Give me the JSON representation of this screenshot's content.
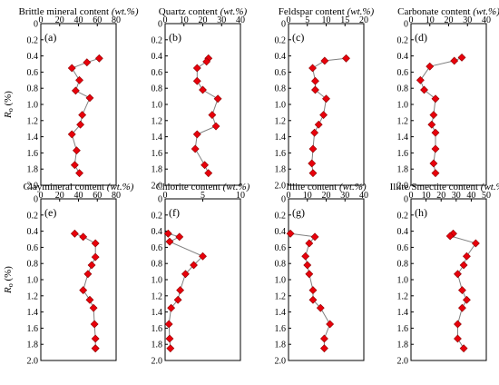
{
  "style": {
    "marker_color": "#e8000b",
    "marker_stroke": "#8b0000",
    "line_color": "#808080"
  },
  "chart_data": [
    {
      "type": "scatter",
      "title": "Brittle mineral content",
      "title_unit": "(wt.%)",
      "label": "(a)",
      "xlim": [
        0,
        80
      ],
      "xticks": [
        "0",
        "20",
        "40",
        "60",
        "80"
      ],
      "ylim": [
        2.0,
        0
      ],
      "yticks": [
        "0",
        "0.2",
        "0.4",
        "0.6",
        "0.8",
        "1.0",
        "1.2",
        "1.4",
        "1.6",
        "1.8",
        "2.0"
      ],
      "ylabel": "Ro (%)",
      "x": [
        62,
        49,
        33,
        41,
        37,
        52,
        44,
        42,
        33,
        38,
        36,
        41
      ],
      "y": [
        0.43,
        0.48,
        0.55,
        0.7,
        0.83,
        0.92,
        1.13,
        1.25,
        1.37,
        1.57,
        1.75,
        1.85
      ]
    },
    {
      "type": "scatter",
      "title": "Quartz content",
      "title_unit": "(wt.%)",
      "label": "(b)",
      "xlim": [
        0,
        40
      ],
      "xticks": [
        "0",
        "10",
        "20",
        "30",
        "40"
      ],
      "ylim": [
        2.0,
        0
      ],
      "yticks": [
        "0",
        "0.2",
        "0.4",
        "0.6",
        "0.8",
        "1.0",
        "1.2",
        "1.4",
        "1.6",
        "1.8",
        "2.0"
      ],
      "x": [
        23,
        22,
        17,
        17,
        20,
        28,
        25,
        27,
        17,
        16,
        21,
        23
      ],
      "y": [
        0.43,
        0.47,
        0.55,
        0.71,
        0.82,
        0.93,
        1.13,
        1.27,
        1.37,
        1.55,
        1.75,
        1.85
      ]
    },
    {
      "type": "scatter",
      "title": "Feldspar content",
      "title_unit": "(wt.%)",
      "label": "(c)",
      "xlim": [
        0,
        20
      ],
      "xticks": [
        "0",
        "5",
        "10",
        "15",
        "20"
      ],
      "ylim": [
        2.0,
        0
      ],
      "yticks": [
        "0",
        "0.2",
        "0.4",
        "0.6",
        "0.8",
        "1.0",
        "1.2",
        "1.4",
        "1.6",
        "1.8",
        "2.0"
      ],
      "x": [
        15.3,
        9.6,
        6.4,
        7.1,
        7.1,
        10.0,
        9.3,
        8.0,
        6.9,
        6.5,
        6.2,
        6.5
      ],
      "y": [
        0.43,
        0.46,
        0.55,
        0.71,
        0.82,
        0.93,
        1.13,
        1.25,
        1.35,
        1.55,
        1.73,
        1.85
      ]
    },
    {
      "type": "scatter",
      "title": "Carbonate content",
      "title_unit": "(wt.%)",
      "label": "(d)",
      "xlim": [
        0,
        40
      ],
      "xticks": [
        "0",
        "10",
        "20",
        "30",
        "40"
      ],
      "ylim": [
        2.0,
        0
      ],
      "yticks": [
        "0",
        "0.2",
        "0.4",
        "0.6",
        "0.8",
        "1.0",
        "1.2",
        "1.4",
        "1.6",
        "1.8",
        "2.0"
      ],
      "x": [
        27,
        23,
        10,
        5,
        7,
        13,
        12,
        11,
        13,
        13,
        12,
        13
      ],
      "y": [
        0.42,
        0.46,
        0.53,
        0.7,
        0.82,
        0.93,
        1.13,
        1.25,
        1.35,
        1.55,
        1.73,
        1.85
      ]
    },
    {
      "type": "scatter",
      "title": "Claymineral content",
      "title_unit": "(wt.%)",
      "label": "(e)",
      "xlim": [
        0,
        80
      ],
      "xticks": [
        "0",
        "20",
        "40",
        "60",
        "80"
      ],
      "ylim": [
        2.0,
        0
      ],
      "yticks": [
        "0",
        "0.2",
        "0.4",
        "0.6",
        "0.8",
        "1.0",
        "1.2",
        "1.4",
        "1.6",
        "1.8",
        "2.0"
      ],
      "ylabel": "Ro (%)",
      "x": [
        36,
        45,
        58,
        58,
        54,
        50,
        45,
        52,
        56,
        57,
        58,
        58,
        58
      ],
      "y": [
        0.43,
        0.47,
        0.55,
        0.72,
        0.82,
        0.93,
        1.13,
        1.25,
        1.35,
        1.55,
        1.73,
        1.85,
        1.85
      ]
    },
    {
      "type": "scatter",
      "title": "Chlorite content",
      "title_unit": "(wt.%)",
      "label": "(f)",
      "xlim": [
        0,
        10
      ],
      "xticks": [
        "0",
        "5",
        "10"
      ],
      "ylim": [
        2.0,
        0
      ],
      "yticks": [
        "0",
        "0.2",
        "0.4",
        "0.6",
        "0.8",
        "1.0",
        "1.2",
        "1.4",
        "1.6",
        "1.8",
        "2.0"
      ],
      "x": [
        0.4,
        1.9,
        0.6,
        5.0,
        3.8,
        2.7,
        2.0,
        1.7,
        0.8,
        0.5,
        0.6,
        0.7
      ],
      "y": [
        0.43,
        0.47,
        0.53,
        0.71,
        0.82,
        0.93,
        1.13,
        1.25,
        1.35,
        1.55,
        1.73,
        1.85
      ]
    },
    {
      "type": "scatter",
      "title": "Illite content",
      "title_unit": "(wt.%)",
      "label": "(g)",
      "xlim": [
        0,
        40
      ],
      "xticks": [
        "0",
        "10",
        "20",
        "30",
        "40"
      ],
      "ylim": [
        2.0,
        0
      ],
      "yticks": [
        "0",
        "0.2",
        "0.4",
        "0.6",
        "0.8",
        "1.0",
        "1.2",
        "1.4",
        "1.6",
        "1.8",
        "2.0"
      ],
      "x": [
        1,
        14,
        11,
        9,
        10,
        11,
        13,
        13,
        17,
        22,
        19,
        19
      ],
      "y": [
        0.43,
        0.47,
        0.55,
        0.71,
        0.82,
        0.93,
        1.13,
        1.25,
        1.35,
        1.55,
        1.73,
        1.85
      ]
    },
    {
      "type": "scatter",
      "title": "Illite/Smectite content",
      "title_unit": "(wt.%)",
      "label": "(h)",
      "xlim": [
        0,
        50
      ],
      "xticks": [
        "0",
        "10",
        "20",
        "30",
        "40",
        "50"
      ],
      "ylim": [
        2.0,
        0
      ],
      "yticks": [
        "0",
        "0.2",
        "0.4",
        "0.6",
        "0.8",
        "1.0",
        "1.2",
        "1.4",
        "1.6",
        "1.8",
        "2.0"
      ],
      "x": [
        28,
        26,
        43,
        37,
        35,
        31,
        34,
        37,
        34,
        31,
        31,
        35
      ],
      "y": [
        0.43,
        0.46,
        0.55,
        0.71,
        0.82,
        0.93,
        1.13,
        1.25,
        1.35,
        1.55,
        1.73,
        1.85
      ]
    }
  ]
}
